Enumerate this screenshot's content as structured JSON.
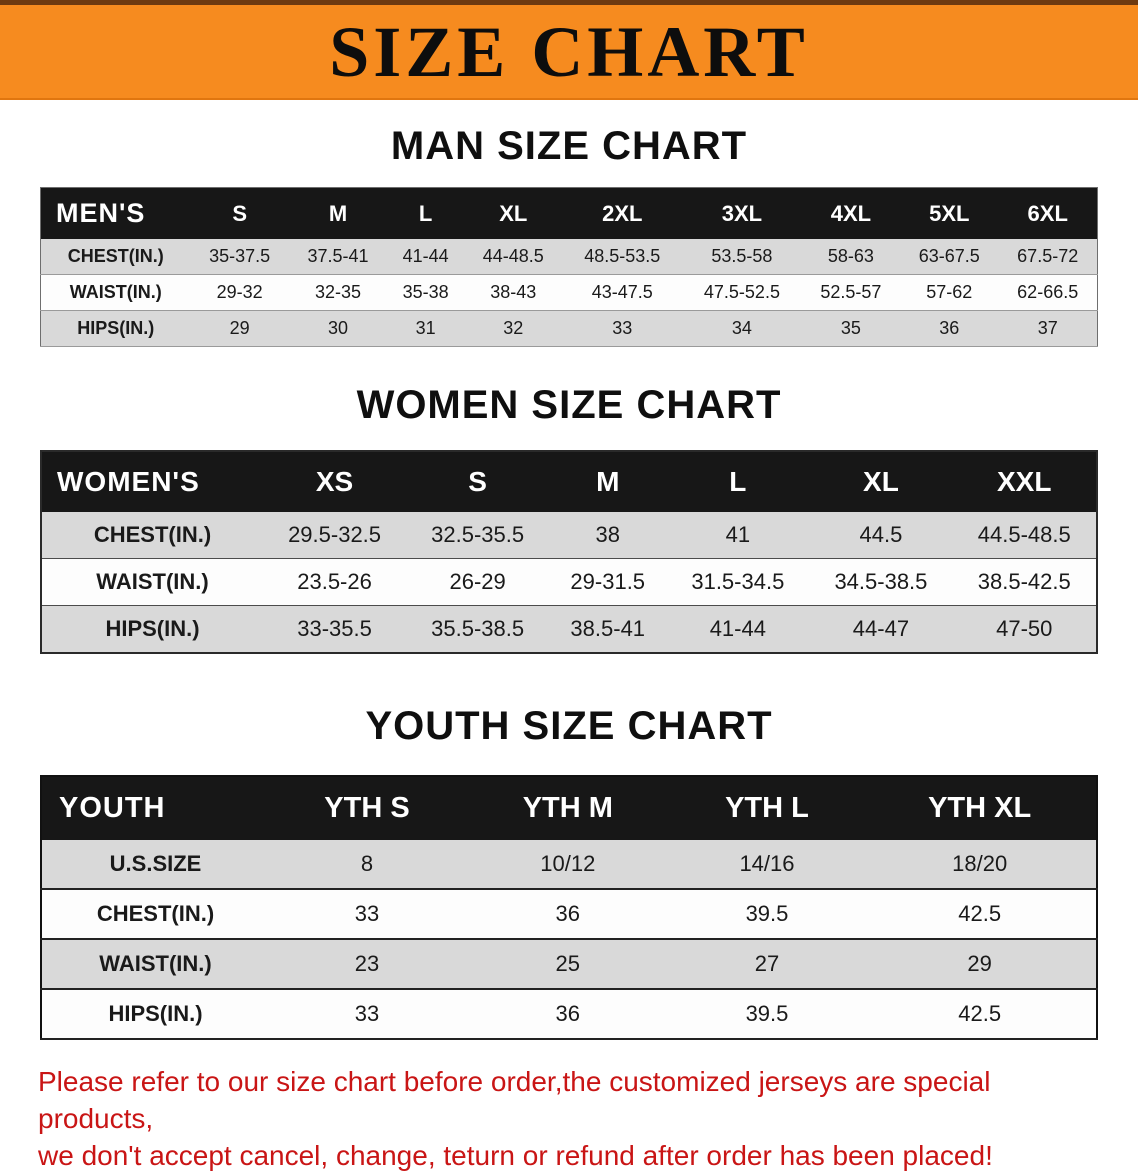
{
  "banner": {
    "title": "SIZE CHART"
  },
  "colors": {
    "banner_bg": "#f68b1f",
    "table_header_bg": "#171717",
    "stripe_gray": "#d9d9d9",
    "note_red": "#c91515"
  },
  "chart_data": [
    {
      "type": "table",
      "title": "MAN SIZE CHART",
      "columns": [
        "MEN'S",
        "S",
        "M",
        "L",
        "XL",
        "2XL",
        "3XL",
        "4XL",
        "5XL",
        "6XL"
      ],
      "rows": [
        [
          "CHEST(IN.)",
          "35-37.5",
          "37.5-41",
          "41-44",
          "44-48.5",
          "48.5-53.5",
          "53.5-58",
          "58-63",
          "63-67.5",
          "67.5-72"
        ],
        [
          "WAIST(IN.)",
          "29-32",
          "32-35",
          "35-38",
          "38-43",
          "43-47.5",
          "47.5-52.5",
          "52.5-57",
          "57-62",
          "62-66.5"
        ],
        [
          "HIPS(IN.)",
          "29",
          "30",
          "31",
          "32",
          "33",
          "34",
          "35",
          "36",
          "37"
        ]
      ]
    },
    {
      "type": "table",
      "title": "WOMEN SIZE CHART",
      "columns": [
        "WOMEN'S",
        "XS",
        "S",
        "M",
        "L",
        "XL",
        "XXL"
      ],
      "rows": [
        [
          "CHEST(IN.)",
          "29.5-32.5",
          "32.5-35.5",
          "38",
          "41",
          "44.5",
          "44.5-48.5"
        ],
        [
          "WAIST(IN.)",
          "23.5-26",
          "26-29",
          "29-31.5",
          "31.5-34.5",
          "34.5-38.5",
          "38.5-42.5"
        ],
        [
          "HIPS(IN.)",
          "33-35.5",
          "35.5-38.5",
          "38.5-41",
          "41-44",
          "44-47",
          "47-50"
        ]
      ]
    },
    {
      "type": "table",
      "title": "YOUTH SIZE CHART",
      "columns": [
        "YOUTH",
        "YTH S",
        "YTH M",
        "YTH L",
        "YTH XL"
      ],
      "rows": [
        [
          "U.S.SIZE",
          "8",
          "10/12",
          "14/16",
          "18/20"
        ],
        [
          "CHEST(IN.)",
          "33",
          "36",
          "39.5",
          "42.5"
        ],
        [
          "WAIST(IN.)",
          "23",
          "25",
          "27",
          "29"
        ],
        [
          "HIPS(IN.)",
          "33",
          "36",
          "39.5",
          "42.5"
        ]
      ]
    }
  ],
  "footer": {
    "line1": "Please refer to our size chart before order,the customized jerseys are special products,",
    "line2": "we don't accept cancel, change, teturn or refund after order has been placed!"
  }
}
